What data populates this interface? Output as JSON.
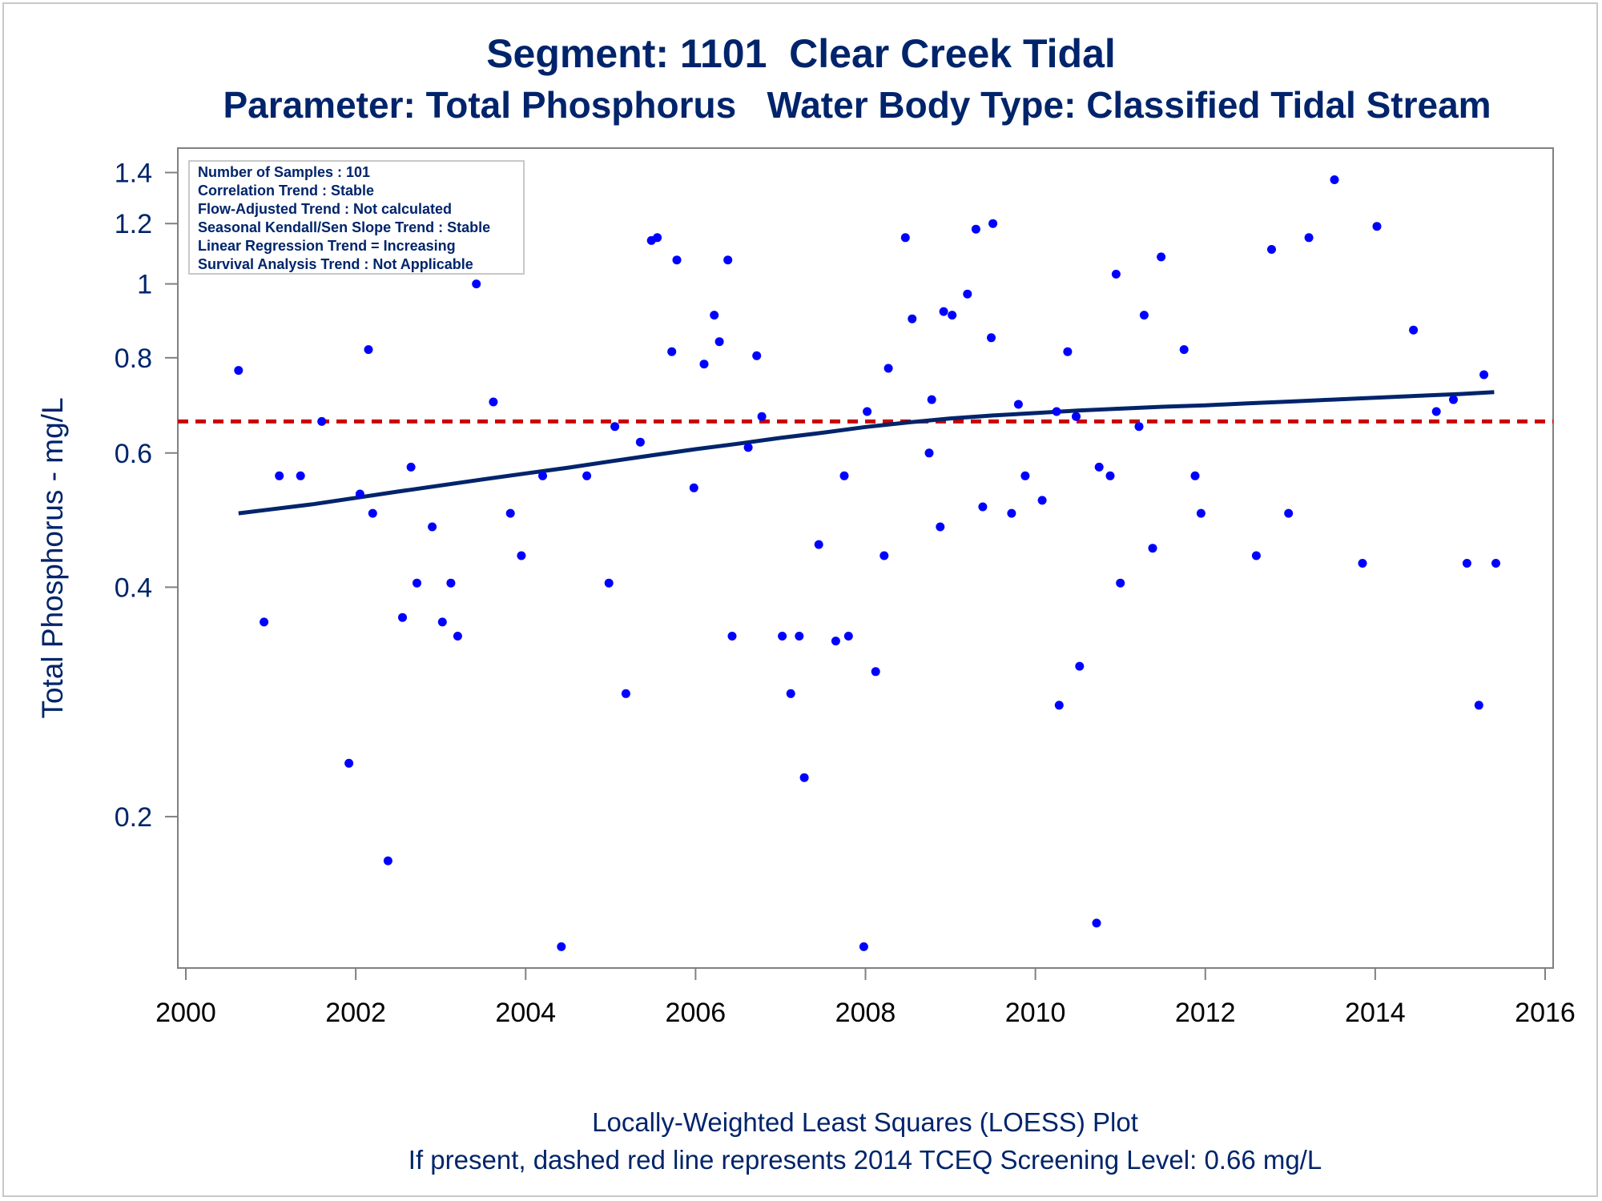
{
  "chart_data": {
    "type": "scatter",
    "title": "Segment: 1101  Clear Creek Tidal",
    "subtitle": "Parameter: Total Phosphorus   Water Body Type: Classified Tidal Stream",
    "xlabel": "",
    "ylabel": "Total Phosphorus - mg/L",
    "footnotes": [
      "Locally-Weighted Least Squares (LOESS) Plot",
      "If present, dashed red line represents 2014 TCEQ Screening Level: 0.66 mg/L"
    ],
    "yscale": "log",
    "xlim": [
      2000,
      2016
    ],
    "ylim": [
      0.13,
      1.45
    ],
    "x_ticks": [
      2000,
      2002,
      2004,
      2006,
      2008,
      2010,
      2012,
      2014,
      2016
    ],
    "y_ticks": [
      0.2,
      0.4,
      0.6,
      0.8,
      1,
      1.2,
      1.4
    ],
    "y_tick_labels": [
      "0.2",
      "0.4",
      "0.6",
      "0.8",
      "1",
      "1.2",
      "1.4"
    ],
    "grid": false,
    "info_box": [
      "Number of Samples : 101",
      "Correlation Trend : Stable",
      "Flow-Adjusted Trend : Not calculated",
      "Seasonal Kendall/Sen Slope Trend : Stable",
      "Linear Regression Trend = Increasing",
      "Survival Analysis Trend : Not Applicable"
    ],
    "screening_level": 0.66,
    "colors": {
      "points": "#0000ff",
      "loess": "#00246b",
      "screening": "#cc0000",
      "text": "#00246b"
    },
    "points": [
      [
        2000.62,
        0.77
      ],
      [
        2000.92,
        0.36
      ],
      [
        2001.1,
        0.56
      ],
      [
        2001.35,
        0.56
      ],
      [
        2001.6,
        0.66
      ],
      [
        2001.92,
        0.235
      ],
      [
        2002.05,
        0.53
      ],
      [
        2002.15,
        0.82
      ],
      [
        2002.2,
        0.5
      ],
      [
        2002.38,
        0.175
      ],
      [
        2002.55,
        0.365
      ],
      [
        2002.65,
        0.575
      ],
      [
        2002.72,
        0.405
      ],
      [
        2002.9,
        0.48
      ],
      [
        2003.02,
        0.36
      ],
      [
        2003.12,
        0.405
      ],
      [
        2003.2,
        0.345
      ],
      [
        2003.42,
        1.0
      ],
      [
        2003.62,
        0.7
      ],
      [
        2003.82,
        0.5
      ],
      [
        2003.95,
        0.44
      ],
      [
        2004.2,
        0.56
      ],
      [
        2004.42,
        0.135
      ],
      [
        2004.72,
        0.56
      ],
      [
        2004.98,
        0.405
      ],
      [
        2005.05,
        0.65
      ],
      [
        2005.18,
        0.29
      ],
      [
        2005.35,
        0.62
      ],
      [
        2005.48,
        1.14
      ],
      [
        2005.55,
        1.15
      ],
      [
        2005.72,
        0.815
      ],
      [
        2005.78,
        1.075
      ],
      [
        2005.98,
        0.54
      ],
      [
        2006.1,
        0.785
      ],
      [
        2006.22,
        0.91
      ],
      [
        2006.28,
        0.84
      ],
      [
        2006.38,
        1.075
      ],
      [
        2006.43,
        0.345
      ],
      [
        2006.62,
        0.61
      ],
      [
        2006.72,
        0.805
      ],
      [
        2006.78,
        0.67
      ],
      [
        2007.02,
        0.345
      ],
      [
        2007.12,
        0.29
      ],
      [
        2007.22,
        0.345
      ],
      [
        2007.28,
        0.225
      ],
      [
        2007.45,
        0.455
      ],
      [
        2007.65,
        0.34
      ],
      [
        2007.75,
        0.56
      ],
      [
        2007.8,
        0.345
      ],
      [
        2007.98,
        0.135
      ],
      [
        2008.02,
        0.68
      ],
      [
        2008.12,
        0.31
      ],
      [
        2008.22,
        0.44
      ],
      [
        2008.27,
        0.775
      ],
      [
        2008.47,
        1.15
      ],
      [
        2008.55,
        0.9
      ],
      [
        2008.75,
        0.6
      ],
      [
        2008.78,
        0.705
      ],
      [
        2008.88,
        0.48
      ],
      [
        2008.92,
        0.92
      ],
      [
        2009.02,
        0.91
      ],
      [
        2009.2,
        0.97
      ],
      [
        2009.3,
        1.18
      ],
      [
        2009.38,
        0.51
      ],
      [
        2009.48,
        0.85
      ],
      [
        2009.5,
        1.2
      ],
      [
        2009.72,
        0.5
      ],
      [
        2009.8,
        0.695
      ],
      [
        2009.88,
        0.56
      ],
      [
        2010.08,
        0.52
      ],
      [
        2010.25,
        0.68
      ],
      [
        2010.28,
        0.28
      ],
      [
        2010.38,
        0.815
      ],
      [
        2010.48,
        0.67
      ],
      [
        2010.52,
        0.315
      ],
      [
        2010.72,
        0.145
      ],
      [
        2010.75,
        0.575
      ],
      [
        2010.88,
        0.56
      ],
      [
        2010.95,
        1.03
      ],
      [
        2011.0,
        0.405
      ],
      [
        2011.22,
        0.65
      ],
      [
        2011.28,
        0.91
      ],
      [
        2011.38,
        0.45
      ],
      [
        2011.48,
        1.085
      ],
      [
        2011.75,
        0.82
      ],
      [
        2011.88,
        0.56
      ],
      [
        2011.95,
        0.5
      ],
      [
        2012.6,
        0.44
      ],
      [
        2012.78,
        1.11
      ],
      [
        2012.98,
        0.5
      ],
      [
        2013.22,
        1.15
      ],
      [
        2013.52,
        1.37
      ],
      [
        2013.85,
        0.43
      ],
      [
        2014.02,
        1.19
      ],
      [
        2014.45,
        0.87
      ],
      [
        2014.72,
        0.68
      ],
      [
        2014.92,
        0.705
      ],
      [
        2015.08,
        0.43
      ],
      [
        2015.22,
        0.28
      ],
      [
        2015.28,
        0.76
      ],
      [
        2015.42,
        0.43
      ]
    ],
    "loess": [
      [
        2000.62,
        0.5
      ],
      [
        2001.0,
        0.506
      ],
      [
        2001.5,
        0.514
      ],
      [
        2002.0,
        0.524
      ],
      [
        2002.5,
        0.534
      ],
      [
        2003.0,
        0.544
      ],
      [
        2003.5,
        0.554
      ],
      [
        2004.0,
        0.564
      ],
      [
        2004.5,
        0.574
      ],
      [
        2005.0,
        0.585
      ],
      [
        2005.5,
        0.596
      ],
      [
        2006.0,
        0.607
      ],
      [
        2006.5,
        0.617
      ],
      [
        2007.0,
        0.628
      ],
      [
        2007.5,
        0.638
      ],
      [
        2008.0,
        0.649
      ],
      [
        2008.5,
        0.658
      ],
      [
        2009.0,
        0.666
      ],
      [
        2009.5,
        0.672
      ],
      [
        2010.0,
        0.677
      ],
      [
        2010.5,
        0.682
      ],
      [
        2011.0,
        0.686
      ],
      [
        2011.5,
        0.69
      ],
      [
        2012.0,
        0.693
      ],
      [
        2012.5,
        0.697
      ],
      [
        2013.0,
        0.701
      ],
      [
        2013.5,
        0.705
      ],
      [
        2014.0,
        0.709
      ],
      [
        2014.5,
        0.713
      ],
      [
        2015.0,
        0.717
      ],
      [
        2015.4,
        0.721
      ]
    ]
  }
}
